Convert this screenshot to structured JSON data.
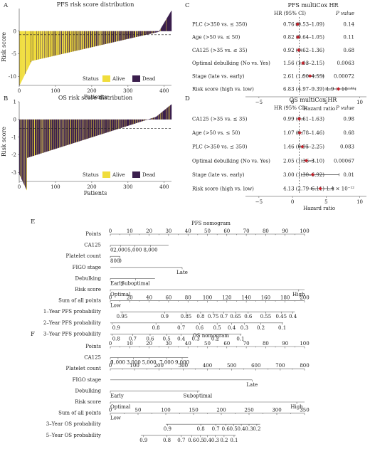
{
  "panels": {
    "A": "A",
    "B": "B",
    "C": "C",
    "D": "D",
    "E": "E",
    "F": "F"
  },
  "colors": {
    "alive": "#f0dd3c",
    "dead": "#3b1f4d",
    "point": "#c0202a"
  },
  "chart_data": [
    {
      "id": "A",
      "type": "bar",
      "title": "PFS risk score distribution",
      "xlabel": "Patients",
      "ylabel": "Risk score",
      "xlim": [
        0,
        420
      ],
      "ylim": [
        -12,
        5
      ],
      "xticks": [
        "0",
        "100",
        "200",
        "300",
        "400"
      ],
      "yticks": [
        "-10",
        "-5",
        "0"
      ],
      "cutoff": -0.8,
      "legend_title": "Status",
      "legend": [
        "Alive",
        "Dead"
      ],
      "legend_position": "bottom-right",
      "shape": {
        "n": 420,
        "min": -12,
        "max": 4.5,
        "dead_fraction_start": 0.05,
        "dead_fraction_end": 0.95
      }
    },
    {
      "id": "B",
      "type": "bar",
      "title": "OS risk score distribution",
      "xlabel": "Patients",
      "ylabel": "Risk score",
      "xlim": [
        0,
        420
      ],
      "ylim": [
        -3.5,
        1
      ],
      "xticks": [
        "0",
        "100",
        "200",
        "300",
        "400"
      ],
      "yticks": [
        "-3",
        "-2",
        "-1",
        "0",
        "1"
      ],
      "cutoff": -0.5,
      "legend_title": "Status",
      "legend": [
        "Alive",
        "Dead"
      ],
      "legend_position": "bottom-right",
      "shape": {
        "n": 420,
        "min": -3.1,
        "max": 0.85,
        "dead_fraction_start": 0.75,
        "dead_fraction_end": 0.85
      }
    },
    {
      "id": "C",
      "type": "forest",
      "title": "PFS multiCox HR",
      "col_hr": "HR (95% CI)",
      "col_p": "P value",
      "xlabel": "Hazard ratio",
      "xlim": [
        -7,
        11
      ],
      "xticks": [
        "−5",
        "0",
        "5",
        "10"
      ],
      "ref_line": 1,
      "rows": [
        {
          "label": "PLC (>350 vs. ≤ 350)",
          "hr": 0.76,
          "lo": 0.53,
          "hi": 1.09,
          "hr_text": "0.76 (0.53–1.09)",
          "p": "0.14"
        },
        {
          "label": "Age (>50 vs. ≤ 50)",
          "hr": 0.82,
          "lo": 0.64,
          "hi": 1.05,
          "hr_text": "0.82 (0.64–1.05)",
          "p": "0.11"
        },
        {
          "label": "CA125 (>35 vs. ≤ 35)",
          "hr": 0.92,
          "lo": 0.62,
          "hi": 1.36,
          "hr_text": "0.92 (0.62–1.36)",
          "p": "0.68"
        },
        {
          "label": "Optimal debulking (No vs. Yes)",
          "hr": 1.56,
          "lo": 1.13,
          "hi": 2.15,
          "hr_text": "1.56 (1.13–2.15)",
          "p": "0.0063"
        },
        {
          "label": "Stage (late vs. early)",
          "hr": 2.61,
          "lo": 1.5,
          "hi": 4.55,
          "hr_text": "2.61 (1.50–4.55)",
          "p": "0.00072"
        },
        {
          "label": "Risk score (high vs. low)",
          "hr": 6.83,
          "lo": 4.97,
          "hi": 9.39,
          "hr_text": "6.83 (4.97–9.39)",
          "p": "1.9 × 10⁻³²"
        }
      ]
    },
    {
      "id": "D",
      "type": "forest",
      "title": "OS multiCox HR",
      "col_hr": "HR (95% CI)",
      "col_p": "P value",
      "xlabel": "Hazard ratio",
      "xlim": [
        -7,
        11
      ],
      "xticks": [
        "−5",
        "0",
        "5",
        "10"
      ],
      "ref_line": 1,
      "rows": [
        {
          "label": "CA125 (>35 vs. ≤ 35)",
          "hr": 0.99,
          "lo": 0.61,
          "hi": 1.63,
          "hr_text": "0.99 (0.61–1.63)",
          "p": "0.98"
        },
        {
          "label": "Age (>50 vs. ≤ 50)",
          "hr": 1.07,
          "lo": 0.78,
          "hi": 1.46,
          "hr_text": "1.07 (0.78–1.46)",
          "p": "0.68"
        },
        {
          "label": "PLC (>350 vs. ≤ 350)",
          "hr": 1.46,
          "lo": 0.95,
          "hi": 2.25,
          "hr_text": "1.46 (0.95–2.25)",
          "p": "0.083"
        },
        {
          "label": "Optimal debulking (No vs. Yes)",
          "hr": 2.05,
          "lo": 1.36,
          "hi": 3.1,
          "hr_text": "2.05 (1.36–3.10)",
          "p": "0.00067"
        },
        {
          "label": "Stage (late vs. early)",
          "hr": 3.0,
          "lo": 1.3,
          "hi": 6.92,
          "hr_text": "3.00 (1.30–6.92)",
          "p": "0.01"
        },
        {
          "label": "Risk score (high vs. low)",
          "hr": 4.13,
          "lo": 2.79,
          "hi": 6.11,
          "hr_text": "4.13 (2.79–6.11)",
          "p": "1.4 × 10⁻¹²"
        }
      ]
    },
    {
      "id": "E",
      "type": "nomogram",
      "title": "PFS nomogram",
      "rows": [
        {
          "label": "Points",
          "kind": "scale",
          "domain": [
            0,
            100
          ],
          "ticks": [
            0,
            10,
            20,
            30,
            40,
            50,
            60,
            70,
            80,
            90,
            100
          ]
        },
        {
          "label": "CA125",
          "kind": "labels",
          "domain": [
            0,
            100
          ],
          "items": [
            {
              "t": "0",
              "v": 0
            },
            {
              "t": "2,000",
              "v": 5.2
            },
            {
              "t": "5,000",
              "v": 12.6
            },
            {
              "t": "8,000",
              "v": 20.7
            }
          ],
          "line": [
            0,
            30
          ]
        },
        {
          "label": "Platelet count",
          "kind": "labels",
          "domain": [
            0,
            100
          ],
          "items": [
            {
              "t": "800",
              "v": 0
            },
            {
              "t": "0",
              "v": 5
            }
          ],
          "line": [
            0,
            5
          ]
        },
        {
          "label": "FIGO stage",
          "kind": "labels",
          "domain": [
            0,
            100
          ],
          "items": [
            {
              "t": "Late",
              "v": 37
            }
          ],
          "line": [
            0,
            37
          ]
        },
        {
          "label": "Debulking",
          "kind": "labels",
          "domain": [
            0,
            100
          ],
          "items": [
            {
              "t": "Early",
              "v": 0
            },
            {
              "t": "Suboptimal",
              "v": 13
            }
          ],
          "line": [
            0,
            23
          ]
        },
        {
          "label": "Risk score",
          "kind": "labels",
          "domain": [
            0,
            100
          ],
          "items": [
            {
              "t": "Optimal",
              "v": 0
            },
            {
              "t": "High",
              "v": 97
            }
          ],
          "line": [
            0,
            100
          ]
        },
        {
          "label": "Sum of all points",
          "kind": "scale",
          "domain": [
            0,
            200
          ],
          "ticks": [
            0,
            20,
            40,
            60,
            80,
            100,
            120,
            140,
            160,
            180,
            200
          ],
          "lead": "Low"
        },
        {
          "label": "1–Year PFS probability",
          "kind": "labels",
          "domain": [
            0,
            200
          ],
          "items": [
            {
              "t": "0.95",
              "v": 12
            },
            {
              "t": "0.9",
              "v": 56
            },
            {
              "t": "0.85",
              "v": 78
            },
            {
              "t": "0.8",
              "v": 93
            },
            {
              "t": "0.75",
              "v": 106
            },
            {
              "t": "0.7",
              "v": 117
            },
            {
              "t": "0.65",
              "v": 129
            },
            {
              "t": "0.6",
              "v": 142
            },
            {
              "t": "0.55",
              "v": 160
            },
            {
              "t": "0.45",
              "v": 176
            },
            {
              "t": "0.4",
              "v": 188
            }
          ],
          "line": [
            10,
            190
          ]
        },
        {
          "label": "2–Year PFS probability",
          "kind": "labels",
          "domain": [
            0,
            200
          ],
          "items": [
            {
              "t": "0.9",
              "v": 2
            },
            {
              "t": "0.8",
              "v": 47
            },
            {
              "t": "0.7",
              "v": 73
            },
            {
              "t": "0.6",
              "v": 92
            },
            {
              "t": "0.5",
              "v": 110
            },
            {
              "t": "0.4",
              "v": 125
            },
            {
              "t": "0.3",
              "v": 138
            },
            {
              "t": "0.2",
              "v": 155
            },
            {
              "t": "0.1",
              "v": 177
            }
          ],
          "line": [
            0,
            178
          ]
        },
        {
          "label": "3–Year PFS probability",
          "kind": "labels",
          "domain": [
            0,
            200
          ],
          "items": [
            {
              "t": "0.8",
              "v": 2
            },
            {
              "t": "0.7",
              "v": 23
            },
            {
              "t": "0.6",
              "v": 41
            },
            {
              "t": "0.5",
              "v": 58
            },
            {
              "t": "0.4",
              "v": 73
            },
            {
              "t": "0.3",
              "v": 88
            },
            {
              "t": "0.2",
              "v": 108
            },
            {
              "t": "0.1",
              "v": 134
            }
          ],
          "line": [
            0,
            135
          ]
        }
      ]
    },
    {
      "id": "F",
      "type": "nomogram",
      "title": "OS nomogram",
      "rows": [
        {
          "label": "Points",
          "kind": "scale",
          "domain": [
            0,
            100
          ],
          "ticks": [
            0,
            10,
            20,
            30,
            40,
            50,
            60,
            70,
            80,
            90,
            100
          ]
        },
        {
          "label": "CA125",
          "kind": "labels",
          "domain": [
            0,
            100
          ],
          "items": [
            {
              "t": "0",
              "v": 0
            },
            {
              "t": "1,000",
              "v": 4
            },
            {
              "t": "3,000",
              "v": 12
            },
            {
              "t": "5,000",
              "v": 20
            },
            {
              "t": "7,000",
              "v": 29
            },
            {
              "t": "9,000",
              "v": 37
            }
          ],
          "line": [
            0,
            40
          ]
        },
        {
          "label": "Platelet count",
          "kind": "scale",
          "domain": [
            0,
            800
          ],
          "ticks": [
            0,
            100,
            200,
            300,
            400,
            500,
            600,
            700,
            800
          ]
        },
        {
          "label": "FIGO stage",
          "kind": "labels",
          "domain": [
            0,
            100
          ],
          "items": [
            {
              "t": "Late",
              "v": 73
            }
          ],
          "line": [
            0,
            73
          ]
        },
        {
          "label": "Debulking",
          "kind": "labels",
          "domain": [
            0,
            100
          ],
          "items": [
            {
              "t": "Early",
              "v": 0
            },
            {
              "t": "Suboptimal",
              "v": 45
            }
          ],
          "line": [
            0,
            46
          ]
        },
        {
          "label": "Risk score",
          "kind": "labels",
          "domain": [
            0,
            100
          ],
          "items": [
            {
              "t": "Optimal",
              "v": 0
            },
            {
              "t": "High",
              "v": 96
            }
          ],
          "line": [
            0,
            100
          ]
        },
        {
          "label": "Sum of all points",
          "kind": "scale",
          "domain": [
            0,
            350
          ],
          "ticks": [
            0,
            50,
            100,
            150,
            200,
            250,
            300,
            350
          ],
          "lead": "Low"
        },
        {
          "label": "3–Year OS probability",
          "kind": "labels",
          "domain": [
            0,
            350
          ],
          "items": [
            {
              "t": "0.9",
              "v": 103
            },
            {
              "t": "0.8",
              "v": 163
            },
            {
              "t": "0.7",
              "v": 190
            },
            {
              "t": "0.6",
              "v": 208
            },
            {
              "t": "0.5",
              "v": 222
            },
            {
              "t": "0.4",
              "v": 236
            },
            {
              "t": "0.3",
              "v": 250
            },
            {
              "t": "0.2",
              "v": 264
            }
          ],
          "line": [
            100,
            270
          ]
        },
        {
          "label": "5–Year OS probability",
          "kind": "labels",
          "domain": [
            0,
            350
          ],
          "items": [
            {
              "t": "0.9",
              "v": 60
            },
            {
              "t": "0.8",
              "v": 102
            },
            {
              "t": "0.7",
              "v": 128
            },
            {
              "t": "0.6",
              "v": 147
            },
            {
              "t": "0.5",
              "v": 162
            },
            {
              "t": "0.4",
              "v": 175
            },
            {
              "t": "0.3",
              "v": 189
            },
            {
              "t": "0.2",
              "v": 205
            },
            {
              "t": "0.1",
              "v": 223
            }
          ],
          "line": [
            55,
            226
          ]
        }
      ]
    }
  ]
}
